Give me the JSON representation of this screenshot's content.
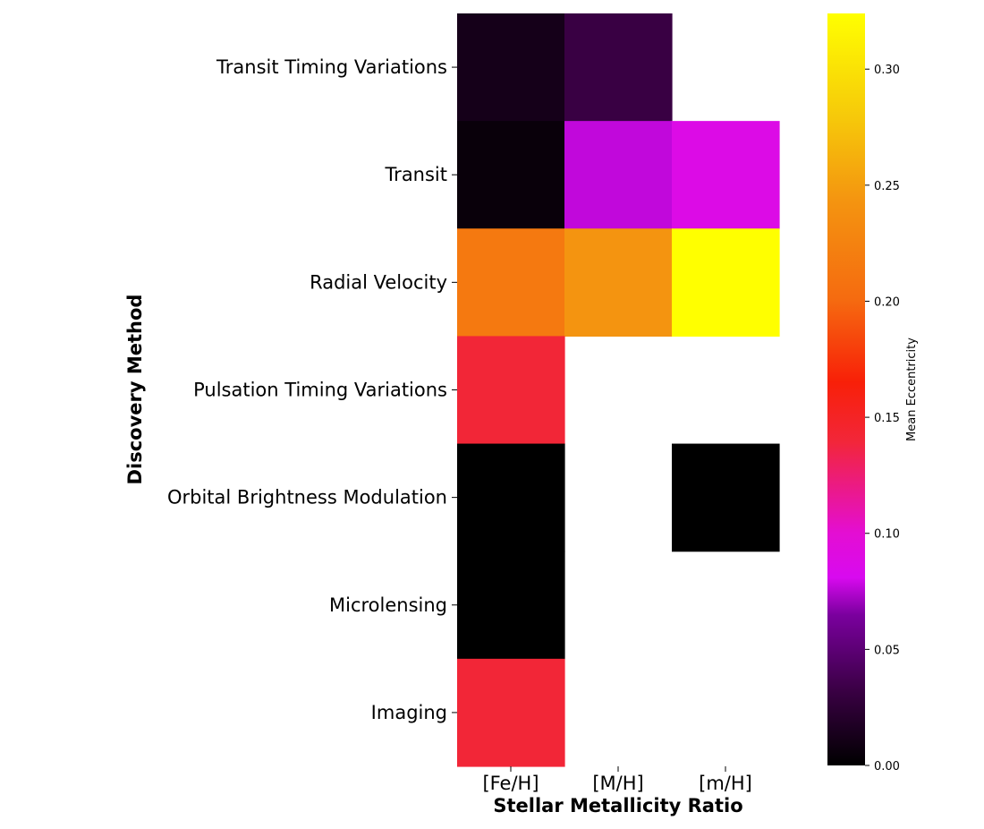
{
  "chart_data": {
    "type": "heatmap",
    "title": "",
    "xlabel": "Stellar Metallicity Ratio",
    "ylabel": "Discovery Method",
    "x_categories": [
      "[Fe/H]",
      "[M/H]",
      "[m/H]"
    ],
    "y_categories": [
      "Transit Timing Variations",
      "Transit",
      "Radial Velocity",
      "Pulsation Timing Variations",
      "Orbital Brightness Modulation",
      "Microlensing",
      "Imaging"
    ],
    "values": [
      [
        0.012,
        0.032,
        null
      ],
      [
        0.005,
        0.077,
        0.087
      ],
      [
        0.215,
        0.243,
        0.324
      ],
      [
        0.141,
        null,
        null
      ],
      [
        0.0,
        null,
        0.0
      ],
      [
        0.0,
        null,
        null
      ],
      [
        0.141,
        null,
        null
      ]
    ],
    "colormap": "gnuplot2-like (black-purple-magenta-red-orange-yellow)",
    "colorbar": {
      "label": "Mean Eccentricity",
      "vmin": 0.0,
      "vmax": 0.324,
      "ticks": [
        "0.00",
        "0.05",
        "0.10",
        "0.15",
        "0.20",
        "0.25",
        "0.30"
      ],
      "position": "right"
    },
    "grid": false,
    "legend": "none"
  }
}
